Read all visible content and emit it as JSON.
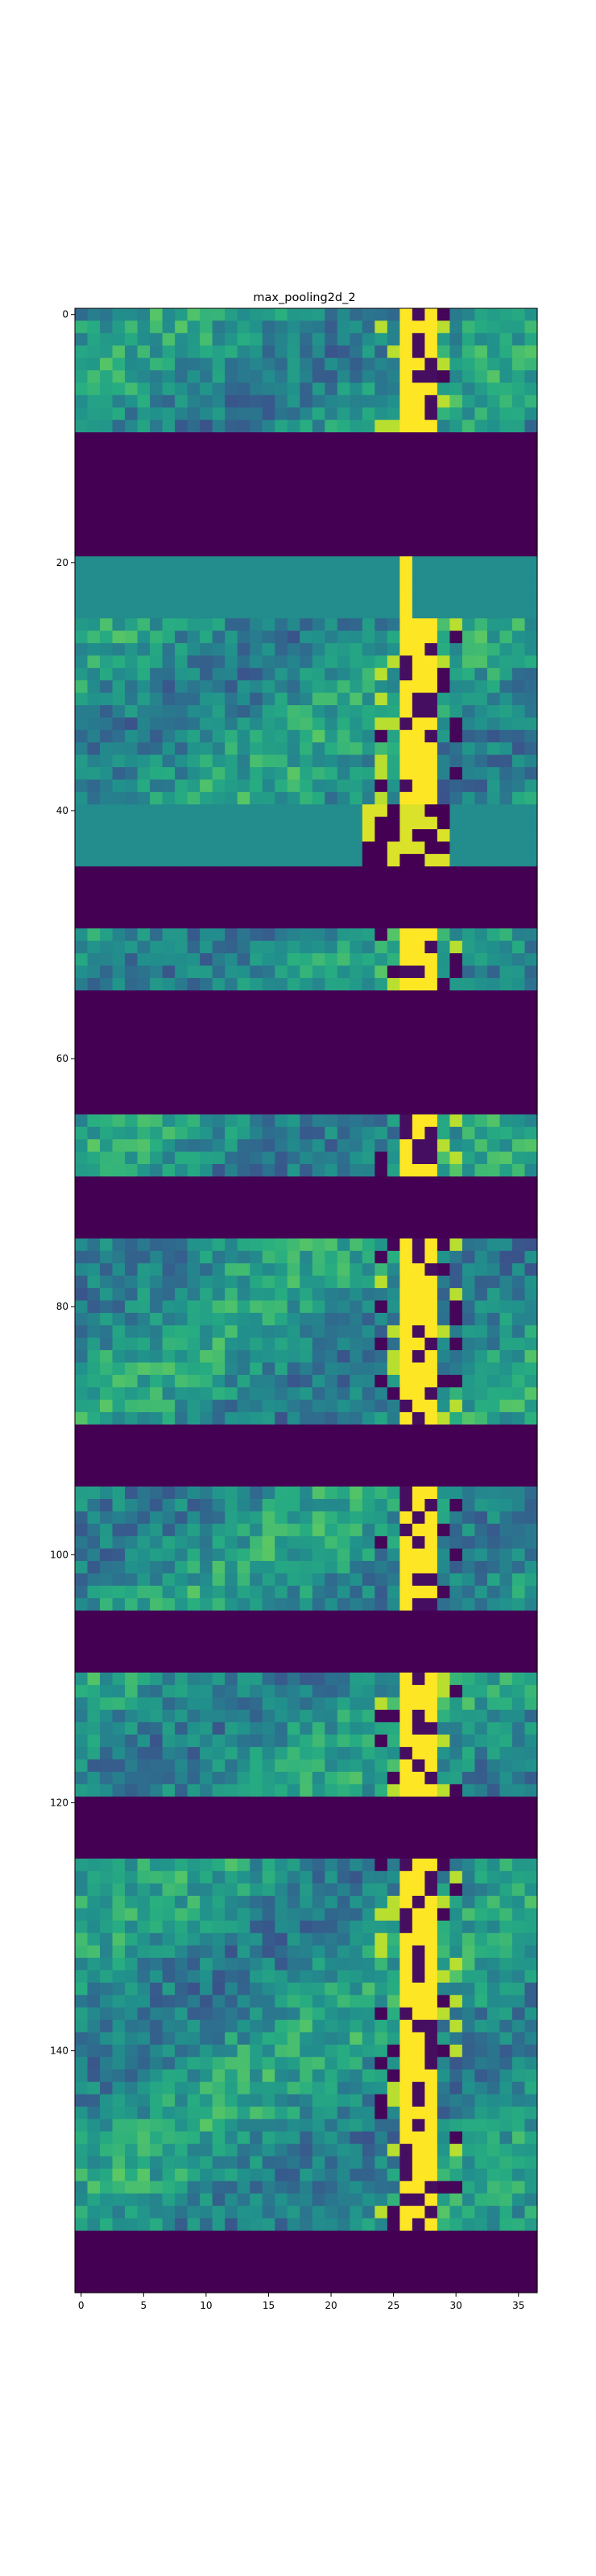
{
  "chart_data": {
    "type": "heatmap",
    "title": "max_pooling2d_2",
    "xlabel": "",
    "ylabel": "",
    "colormap": "viridis",
    "grid": false,
    "shape": [
      160,
      37
    ],
    "xlim": [
      -0.5,
      36.5
    ],
    "ylim": [
      159.5,
      -0.5
    ],
    "xticks": [
      0,
      5,
      10,
      15,
      20,
      25,
      30,
      35
    ],
    "yticks": [
      0,
      20,
      40,
      60,
      80,
      100,
      120,
      140
    ],
    "colors": {
      "low": "#440154",
      "mid": "#21918c",
      "high": "#fde725"
    },
    "row_blocks": [
      {
        "rows": [
          0,
          9
        ],
        "kind": "textured"
      },
      {
        "rows": [
          10,
          19
        ],
        "kind": "zero"
      },
      {
        "rows": [
          20,
          24
        ],
        "kind": "flat"
      },
      {
        "rows": [
          25,
          39
        ],
        "kind": "textured"
      },
      {
        "rows": [
          40,
          44
        ],
        "kind": "flat"
      },
      {
        "rows": [
          45,
          49
        ],
        "kind": "zero"
      },
      {
        "rows": [
          50,
          54
        ],
        "kind": "textured"
      },
      {
        "rows": [
          55,
          64
        ],
        "kind": "zero"
      },
      {
        "rows": [
          65,
          69
        ],
        "kind": "textured"
      },
      {
        "rows": [
          70,
          74
        ],
        "kind": "zero"
      },
      {
        "rows": [
          75,
          89
        ],
        "kind": "textured"
      },
      {
        "rows": [
          90,
          94
        ],
        "kind": "zero"
      },
      {
        "rows": [
          95,
          104
        ],
        "kind": "textured"
      },
      {
        "rows": [
          105,
          109
        ],
        "kind": "zero"
      },
      {
        "rows": [
          110,
          119
        ],
        "kind": "textured"
      },
      {
        "rows": [
          120,
          124
        ],
        "kind": "zero"
      },
      {
        "rows": [
          125,
          154
        ],
        "kind": "textured"
      },
      {
        "rows": [
          155,
          159
        ],
        "kind": "zero"
      }
    ],
    "bright_columns": [
      26,
      27,
      28
    ]
  }
}
